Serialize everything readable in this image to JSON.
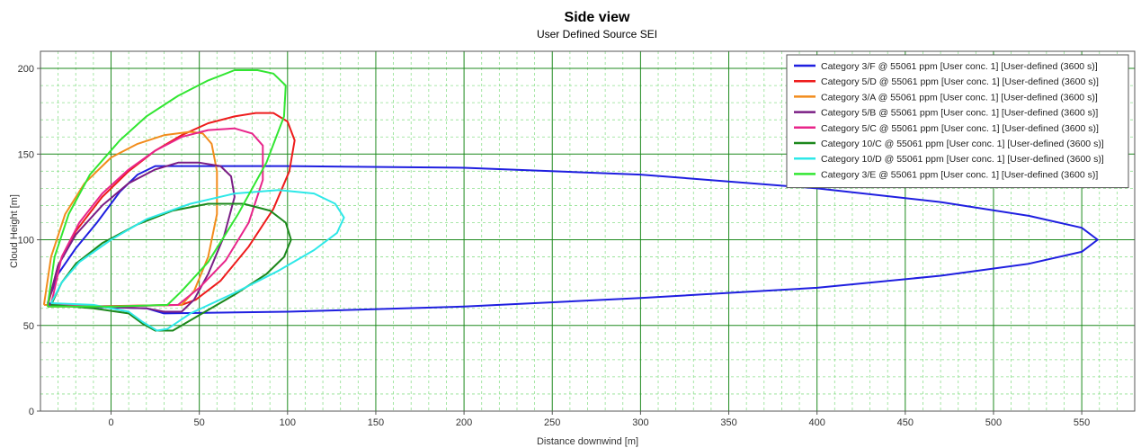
{
  "chart_data": {
    "type": "line",
    "title": "Side view",
    "subtitle": "User Defined Source SEI",
    "xlabel": "Distance downwind [m]",
    "ylabel": "Cloud Height [m]",
    "xlim": [
      -40,
      580
    ],
    "ylim": [
      0,
      210
    ],
    "xticks": [
      0,
      50,
      100,
      150,
      200,
      250,
      300,
      350,
      400,
      450,
      500,
      550
    ],
    "yticks": [
      0,
      50,
      100,
      150,
      200
    ],
    "grid": true,
    "legend_position": "top-right",
    "series": [
      {
        "name": "Category 3/F @ 55061 ppm  [User conc. 1]  [User-defined (3600 s)]",
        "color": "#1f1fe0",
        "points": [
          [
            -36,
            63
          ],
          [
            -30,
            80
          ],
          [
            -20,
            95
          ],
          [
            -8,
            110
          ],
          [
            5,
            128
          ],
          [
            15,
            138
          ],
          [
            25,
            143
          ],
          [
            100,
            143
          ],
          [
            200,
            142
          ],
          [
            300,
            138
          ],
          [
            400,
            130
          ],
          [
            470,
            122
          ],
          [
            520,
            114
          ],
          [
            550,
            107
          ],
          [
            559,
            100
          ],
          [
            550,
            93
          ],
          [
            520,
            86
          ],
          [
            470,
            79
          ],
          [
            400,
            72
          ],
          [
            300,
            66
          ],
          [
            200,
            61
          ],
          [
            100,
            58
          ],
          [
            30,
            57
          ],
          [
            20,
            60
          ],
          [
            -20,
            61
          ],
          [
            -36,
            63
          ]
        ]
      },
      {
        "name": "Category 5/D @ 55061 ppm  [User conc. 1]  [User-defined (3600 s)]",
        "color": "#ee1c1c",
        "points": [
          [
            -36,
            61
          ],
          [
            -30,
            85
          ],
          [
            -20,
            105
          ],
          [
            -5,
            125
          ],
          [
            10,
            140
          ],
          [
            25,
            152
          ],
          [
            40,
            161
          ],
          [
            55,
            168
          ],
          [
            70,
            172
          ],
          [
            82,
            174
          ],
          [
            92,
            174
          ],
          [
            100,
            169
          ],
          [
            104,
            158
          ],
          [
            101,
            140
          ],
          [
            92,
            118
          ],
          [
            78,
            96
          ],
          [
            62,
            76
          ],
          [
            48,
            65
          ],
          [
            40,
            62
          ],
          [
            -20,
            61
          ],
          [
            -36,
            61
          ]
        ]
      },
      {
        "name": "Category 3/A @ 55061 ppm  [User conc. 1]  [User-defined (3600 s)]",
        "color": "#f28c1c",
        "points": [
          [
            -38,
            62
          ],
          [
            -34,
            90
          ],
          [
            -26,
            115
          ],
          [
            -15,
            133
          ],
          [
            0,
            148
          ],
          [
            15,
            156
          ],
          [
            30,
            161
          ],
          [
            45,
            163
          ],
          [
            52,
            162
          ],
          [
            57,
            156
          ],
          [
            60,
            140
          ],
          [
            60,
            115
          ],
          [
            55,
            90
          ],
          [
            47,
            70
          ],
          [
            40,
            62
          ],
          [
            -10,
            61
          ],
          [
            -38,
            62
          ]
        ]
      },
      {
        "name": "Category 5/B @ 55061 ppm  [User conc. 1]  [User-defined (3600 s)]",
        "color": "#7a1e85",
        "points": [
          [
            -36,
            62
          ],
          [
            -30,
            85
          ],
          [
            -20,
            103
          ],
          [
            -5,
            120
          ],
          [
            10,
            133
          ],
          [
            25,
            141
          ],
          [
            38,
            145
          ],
          [
            50,
            145
          ],
          [
            62,
            143
          ],
          [
            68,
            137
          ],
          [
            70,
            125
          ],
          [
            64,
            102
          ],
          [
            55,
            80
          ],
          [
            47,
            65
          ],
          [
            40,
            58
          ],
          [
            30,
            58
          ],
          [
            20,
            60
          ],
          [
            -36,
            62
          ]
        ]
      },
      {
        "name": "Category 5/C @ 55061 ppm  [User conc. 1]  [User-defined (3600 s)]",
        "color": "#e8258a",
        "points": [
          [
            -34,
            62
          ],
          [
            -28,
            90
          ],
          [
            -18,
            110
          ],
          [
            -5,
            127
          ],
          [
            10,
            141
          ],
          [
            25,
            152
          ],
          [
            40,
            160
          ],
          [
            55,
            164
          ],
          [
            70,
            165
          ],
          [
            80,
            162
          ],
          [
            86,
            155
          ],
          [
            86,
            135
          ],
          [
            78,
            110
          ],
          [
            65,
            88
          ],
          [
            50,
            72
          ],
          [
            38,
            62
          ],
          [
            0,
            61
          ],
          [
            -34,
            62
          ]
        ]
      },
      {
        "name": "Category 10/C @ 55061 ppm  [User conc. 1]  [User-defined (3600 s)]",
        "color": "#1c881c",
        "points": [
          [
            -34,
            62
          ],
          [
            -28,
            75
          ],
          [
            -20,
            86
          ],
          [
            -5,
            98
          ],
          [
            15,
            109
          ],
          [
            35,
            117
          ],
          [
            55,
            121
          ],
          [
            75,
            121
          ],
          [
            90,
            117
          ],
          [
            99,
            110
          ],
          [
            102,
            100
          ],
          [
            98,
            90
          ],
          [
            88,
            80
          ],
          [
            70,
            68
          ],
          [
            50,
            56
          ],
          [
            35,
            47
          ],
          [
            25,
            47
          ],
          [
            18,
            51
          ],
          [
            10,
            57
          ],
          [
            -10,
            60
          ],
          [
            -34,
            62
          ]
        ]
      },
      {
        "name": "Category 10/D @ 55061 ppm  [User conc. 1]  [User-defined (3600 s)]",
        "color": "#2ee8e8",
        "points": [
          [
            -34,
            63
          ],
          [
            -28,
            75
          ],
          [
            -18,
            87
          ],
          [
            0,
            100
          ],
          [
            20,
            112
          ],
          [
            45,
            121
          ],
          [
            70,
            127
          ],
          [
            95,
            129
          ],
          [
            115,
            127
          ],
          [
            127,
            121
          ],
          [
            132,
            113
          ],
          [
            128,
            104
          ],
          [
            115,
            94
          ],
          [
            95,
            82
          ],
          [
            70,
            69
          ],
          [
            45,
            57
          ],
          [
            32,
            48
          ],
          [
            26,
            47
          ],
          [
            18,
            52
          ],
          [
            10,
            58
          ],
          [
            -10,
            62
          ],
          [
            -34,
            63
          ]
        ]
      },
      {
        "name": "Category 3/E @ 55061 ppm  [User conc. 1]  [User-defined (3600 s)]",
        "color": "#32e632",
        "points": [
          [
            -36,
            61
          ],
          [
            -32,
            90
          ],
          [
            -24,
            115
          ],
          [
            -12,
            138
          ],
          [
            5,
            158
          ],
          [
            20,
            172
          ],
          [
            38,
            184
          ],
          [
            55,
            193
          ],
          [
            70,
            199
          ],
          [
            83,
            199
          ],
          [
            92,
            197
          ],
          [
            99,
            190
          ],
          [
            98,
            172
          ],
          [
            88,
            145
          ],
          [
            72,
            115
          ],
          [
            55,
            87
          ],
          [
            40,
            70
          ],
          [
            32,
            62
          ],
          [
            0,
            61
          ],
          [
            -36,
            61
          ]
        ]
      }
    ]
  }
}
